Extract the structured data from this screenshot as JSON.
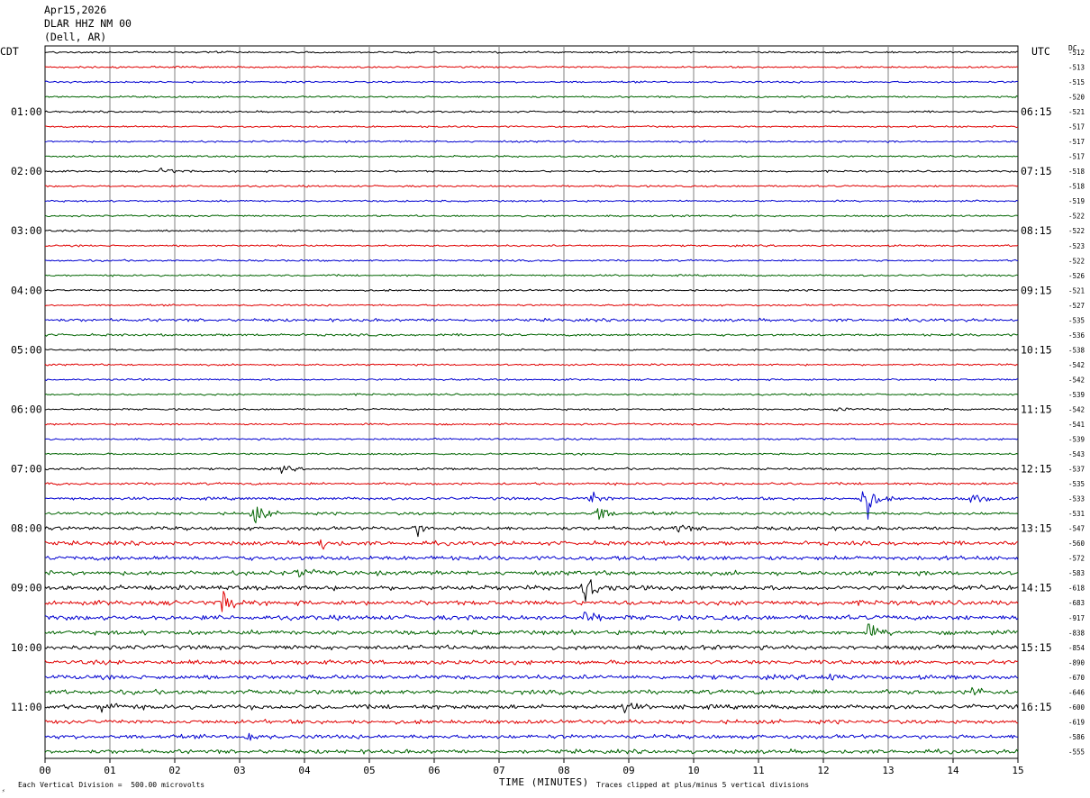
{
  "header": {
    "date": "Apr15,2026",
    "station": "DLAR HHZ NM 00",
    "location": "(Dell, AR)"
  },
  "labels": {
    "left_tz": "CDT",
    "right_tz": "UTC",
    "dc": "DC"
  },
  "footer": {
    "scale_note": "Each Vertical Division =  500.00 microvolts",
    "clip_note": "Traces clipped at plus/minus 5 vertical divisions"
  },
  "chart_data": {
    "type": "line",
    "title": "",
    "xlabel": "TIME (MINUTES)",
    "ylabel": "",
    "xlim": [
      0,
      15
    ],
    "x_ticks": [
      "00",
      "01",
      "02",
      "03",
      "04",
      "05",
      "06",
      "07",
      "08",
      "09",
      "10",
      "11",
      "12",
      "13",
      "14",
      "15"
    ],
    "trace_colors": [
      "#000000",
      "#e00000",
      "#0000d0",
      "#006400"
    ],
    "left_hour_labels": [
      "01:00",
      "02:00",
      "03:00",
      "04:00",
      "05:00",
      "06:00",
      "07:00",
      "08:00",
      "09:00",
      "10:00",
      "11:00"
    ],
    "right_hour_labels": [
      "06:15",
      "07:15",
      "08:15",
      "09:15",
      "10:15",
      "11:15",
      "12:15",
      "13:15",
      "14:15",
      "15:15",
      "16:15"
    ],
    "dc_offsets": [
      -512,
      -513,
      -515,
      -520,
      -521,
      -517,
      -517,
      -517,
      -518,
      -518,
      -519,
      -522,
      -522,
      -523,
      -522,
      -526,
      -521,
      -527,
      -535,
      -536,
      -538,
      -542,
      -542,
      -539,
      -542,
      -541,
      -539,
      -543,
      -537,
      -535,
      -533,
      -531,
      -547,
      -560,
      -572,
      -583,
      -618,
      -683,
      -917,
      -838,
      -854,
      -890,
      -670,
      -646,
      -600,
      -619,
      -586,
      -555
    ],
    "trace_noise_level": [
      1,
      1,
      1,
      1,
      1,
      1,
      1,
      1,
      1,
      1,
      1,
      1,
      1,
      1,
      1,
      1,
      1,
      1,
      1.6,
      1.3,
      1,
      1,
      1,
      1,
      1,
      1,
      1,
      1,
      1.2,
      1.3,
      1.6,
      1.6,
      2,
      2.2,
      2.4,
      2.4,
      2.5,
      2.6,
      2.6,
      2.4,
      2.4,
      2.4,
      2.4,
      2.4,
      2.4,
      2.2,
      2.2,
      2.2
    ],
    "events": [
      {
        "trace": 8,
        "minute": 1.8,
        "amplitude": 4
      },
      {
        "trace": 24,
        "minute": 12.2,
        "amplitude": 3
      },
      {
        "trace": 28,
        "minute": 3.65,
        "amplitude": 3
      },
      {
        "trace": 30,
        "minute": 8.4,
        "amplitude": 6
      },
      {
        "trace": 30,
        "minute": 12.6,
        "amplitude": 22
      },
      {
        "trace": 30,
        "minute": 14.3,
        "amplitude": 6
      },
      {
        "trace": 31,
        "minute": 3.2,
        "amplitude": 12
      },
      {
        "trace": 31,
        "minute": 8.5,
        "amplitude": 8
      },
      {
        "trace": 32,
        "minute": 5.7,
        "amplitude": 6
      },
      {
        "trace": 32,
        "minute": 9.7,
        "amplitude": 5
      },
      {
        "trace": 33,
        "minute": 4.25,
        "amplitude": 5
      },
      {
        "trace": 35,
        "minute": 3.9,
        "amplitude": 5
      },
      {
        "trace": 36,
        "minute": 8.3,
        "amplitude": 16
      },
      {
        "trace": 37,
        "minute": 2.75,
        "amplitude": 10
      },
      {
        "trace": 38,
        "minute": 8.3,
        "amplitude": 6
      },
      {
        "trace": 39,
        "minute": 12.7,
        "amplitude": 6
      },
      {
        "trace": 42,
        "minute": 12.0,
        "amplitude": 5
      },
      {
        "trace": 43,
        "minute": 14.3,
        "amplitude": 5
      },
      {
        "trace": 44,
        "minute": 0.9,
        "amplitude": 8
      },
      {
        "trace": 44,
        "minute": 8.9,
        "amplitude": 5
      },
      {
        "trace": 46,
        "minute": 3.1,
        "amplitude": 4
      }
    ]
  }
}
